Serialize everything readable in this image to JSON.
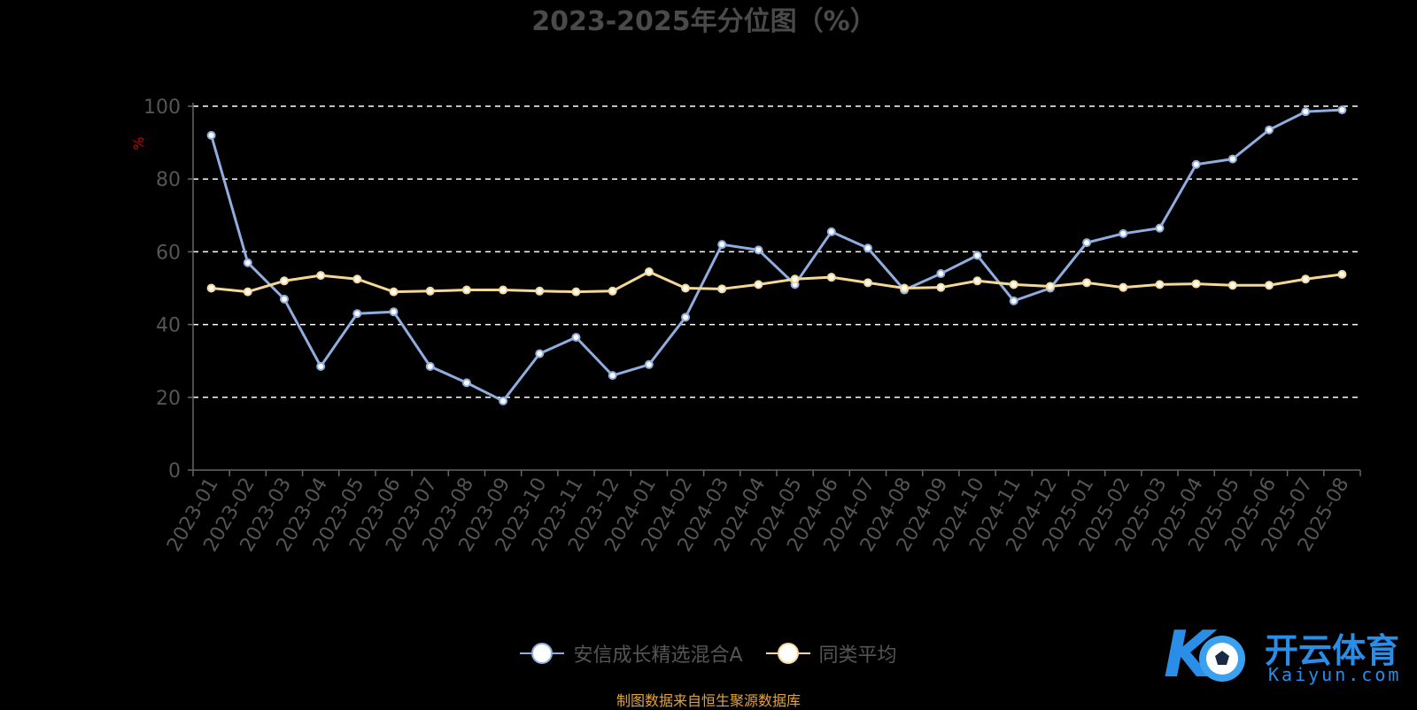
{
  "colors": {
    "background": "#000000",
    "series1": "#8fadde",
    "series2": "#f5d896",
    "title": "#4a4a4a",
    "axis_text": "#555555",
    "unit": "#cc0000",
    "grid": "#ffffff",
    "source": "#e3a33a",
    "logo": "#2a8de6"
  },
  "chart_data": {
    "type": "line",
    "title": "2023-2025年分位图（%）",
    "ylabel": "%",
    "ylim": [
      0,
      100
    ],
    "yticks": [
      0,
      20,
      40,
      60,
      80,
      100
    ],
    "grid": "horizontal dashed",
    "legend_position": "bottom",
    "categories": [
      "2023-01",
      "2023-02",
      "2023-03",
      "2023-04",
      "2023-05",
      "2023-06",
      "2023-07",
      "2023-08",
      "2023-09",
      "2023-10",
      "2023-11",
      "2023-12",
      "2024-01",
      "2024-02",
      "2024-03",
      "2024-04",
      "2024-05",
      "2024-06",
      "2024-07",
      "2024-08",
      "2024-09",
      "2024-10",
      "2024-11",
      "2024-12",
      "2025-01",
      "2025-02",
      "2025-03",
      "2025-04",
      "2025-05",
      "2025-06",
      "2025-07",
      "2025-08"
    ],
    "series": [
      {
        "name": "安信成长精选混合A",
        "values": [
          92,
          57,
          47,
          28.5,
          43,
          43.5,
          28.5,
          24,
          19,
          32,
          36.5,
          26,
          29,
          42,
          62,
          60.5,
          51,
          65.5,
          61,
          49.5,
          54,
          59,
          46.5,
          50,
          62.5,
          65,
          66.5,
          84,
          85.5,
          93.5,
          98.5,
          99
        ]
      },
      {
        "name": "同类平均",
        "values": [
          50,
          49,
          52,
          53.5,
          52.5,
          49,
          49.2,
          49.5,
          49.5,
          49.2,
          49,
          49.2,
          54.5,
          50,
          49.8,
          51,
          52.5,
          53,
          51.5,
          50,
          50.2,
          52,
          51,
          50.5,
          51.5,
          50.2,
          51,
          51.2,
          50.8,
          50.8,
          52.5,
          53.8
        ]
      }
    ]
  },
  "legend": {
    "items": [
      "安信成长精选混合A",
      "同类平均"
    ]
  },
  "footer": {
    "source": "制图数据来自恒生聚源数据库"
  },
  "logo": {
    "name": "开云体育",
    "url_text": "Kaiyun.com"
  }
}
